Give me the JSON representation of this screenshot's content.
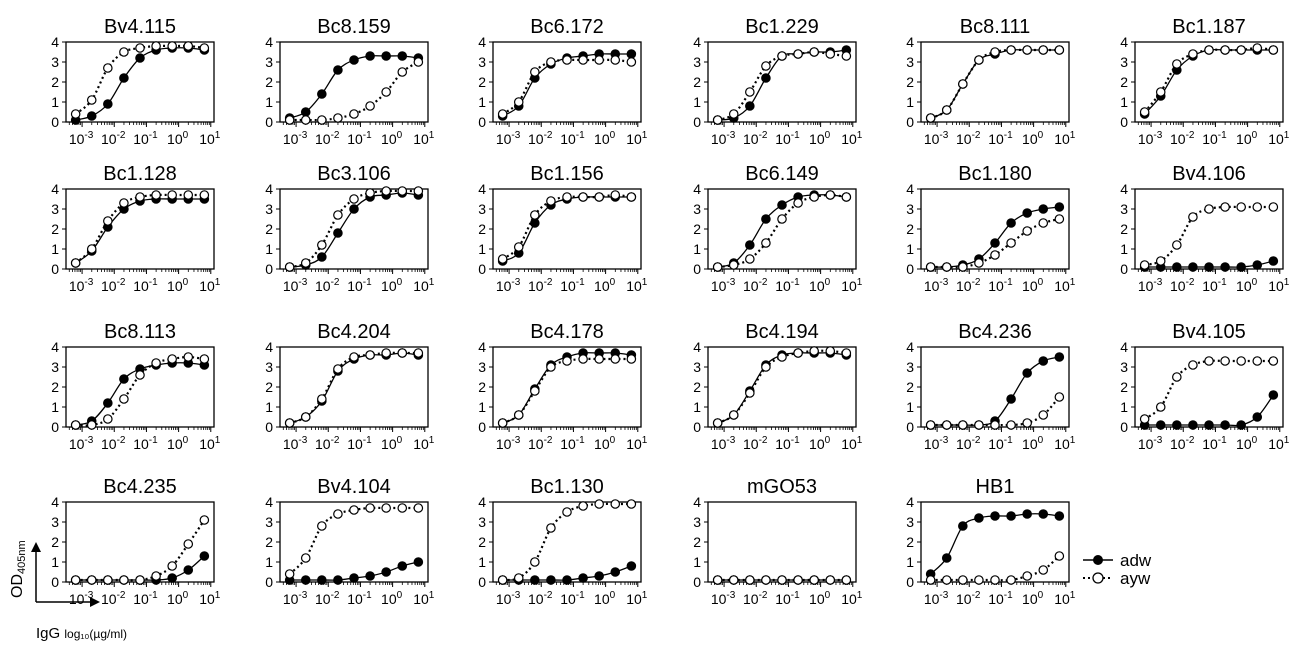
{
  "figure": {
    "yaxis_label_main": "OD",
    "yaxis_label_sub": "405nm",
    "xaxis_label_main": "IgG ",
    "xaxis_label_sub": "log₁₀(µg/ml)"
  },
  "legend": [
    {
      "label": "adw",
      "marker": "filled",
      "line": "solid"
    },
    {
      "label": "ayw",
      "marker": "open",
      "line": "dotted"
    }
  ],
  "tick_labels": {
    "y": [
      "0",
      "1",
      "2",
      "3",
      "4"
    ],
    "x": [
      {
        "base": "10",
        "exp": "-3"
      },
      {
        "base": "10",
        "exp": "-2"
      },
      {
        "base": "10",
        "exp": "-1"
      },
      {
        "base": "10",
        "exp": "0"
      },
      {
        "base": "10",
        "exp": "1"
      }
    ]
  },
  "colors": {
    "ink": "#000000",
    "background": "#ffffff"
  },
  "chart_data": {
    "type": "scatter",
    "x_log10": [
      -3.2,
      -2.7,
      -2.2,
      -1.7,
      -1.2,
      -0.7,
      -0.2,
      0.3,
      0.8
    ],
    "xlim_log10": [
      -3.5,
      1.1
    ],
    "ylim": [
      0,
      4
    ],
    "panels": [
      {
        "title": "Bv4.115",
        "adw": [
          0.1,
          0.3,
          0.9,
          2.2,
          3.2,
          3.6,
          3.7,
          3.7,
          3.6
        ],
        "ayw": [
          0.4,
          1.1,
          2.7,
          3.5,
          3.7,
          3.8,
          3.8,
          3.8,
          3.7
        ]
      },
      {
        "title": "Bc8.159",
        "adw": [
          0.2,
          0.5,
          1.4,
          2.6,
          3.1,
          3.3,
          3.3,
          3.3,
          3.2
        ],
        "ayw": [
          0.1,
          0.1,
          0.1,
          0.2,
          0.4,
          0.8,
          1.5,
          2.5,
          3.0
        ]
      },
      {
        "title": "Bc6.172",
        "adw": [
          0.3,
          0.8,
          2.2,
          2.9,
          3.2,
          3.3,
          3.4,
          3.4,
          3.4
        ],
        "ayw": [
          0.4,
          1.0,
          2.5,
          3.0,
          3.1,
          3.1,
          3.1,
          3.1,
          3.0
        ]
      },
      {
        "title": "Bc1.229",
        "adw": [
          0.1,
          0.2,
          0.8,
          2.2,
          3.3,
          3.4,
          3.5,
          3.5,
          3.6
        ],
        "ayw": [
          0.1,
          0.4,
          1.5,
          2.8,
          3.3,
          3.4,
          3.5,
          3.4,
          3.3
        ]
      },
      {
        "title": "Bc8.111",
        "adw": [
          0.2,
          0.6,
          1.9,
          3.1,
          3.4,
          3.6,
          3.6,
          3.6,
          3.6
        ],
        "ayw": [
          0.2,
          0.6,
          1.9,
          3.1,
          3.5,
          3.6,
          3.6,
          3.6,
          3.6
        ]
      },
      {
        "title": "Bc1.187",
        "adw": [
          0.4,
          1.3,
          2.6,
          3.3,
          3.6,
          3.6,
          3.6,
          3.6,
          3.6
        ],
        "ayw": [
          0.5,
          1.5,
          2.9,
          3.4,
          3.6,
          3.6,
          3.6,
          3.7,
          3.6
        ]
      },
      {
        "title": "Bc1.128",
        "adw": [
          0.3,
          0.9,
          2.1,
          3.0,
          3.4,
          3.5,
          3.5,
          3.5,
          3.5
        ],
        "ayw": [
          0.3,
          1.0,
          2.4,
          3.3,
          3.6,
          3.7,
          3.7,
          3.7,
          3.7
        ]
      },
      {
        "title": "Bc3.106",
        "adw": [
          0.1,
          0.2,
          0.6,
          1.8,
          3.0,
          3.6,
          3.7,
          3.8,
          3.7
        ],
        "ayw": [
          0.1,
          0.3,
          1.2,
          2.7,
          3.5,
          3.8,
          3.9,
          3.9,
          3.9
        ]
      },
      {
        "title": "Bc1.156",
        "adw": [
          0.4,
          0.8,
          2.3,
          3.2,
          3.5,
          3.6,
          3.6,
          3.6,
          3.6
        ],
        "ayw": [
          0.5,
          1.1,
          2.7,
          3.4,
          3.6,
          3.6,
          3.6,
          3.7,
          3.6
        ]
      },
      {
        "title": "Bc6.149",
        "adw": [
          0.1,
          0.3,
          1.2,
          2.5,
          3.2,
          3.6,
          3.7,
          3.7,
          3.6
        ],
        "ayw": [
          0.1,
          0.2,
          0.5,
          1.3,
          2.5,
          3.3,
          3.6,
          3.7,
          3.6
        ]
      },
      {
        "title": "Bc1.180",
        "adw": [
          0.1,
          0.1,
          0.2,
          0.5,
          1.3,
          2.3,
          2.8,
          3.0,
          3.1
        ],
        "ayw": [
          0.1,
          0.1,
          0.1,
          0.3,
          0.7,
          1.3,
          1.9,
          2.3,
          2.5
        ]
      },
      {
        "title": "Bv4.106",
        "adw": [
          0.1,
          0.1,
          0.1,
          0.1,
          0.1,
          0.1,
          0.1,
          0.2,
          0.4
        ],
        "ayw": [
          0.2,
          0.4,
          1.2,
          2.6,
          3.0,
          3.1,
          3.1,
          3.1,
          3.1
        ]
      },
      {
        "title": "Bc8.113",
        "adw": [
          0.1,
          0.3,
          1.2,
          2.4,
          2.9,
          3.1,
          3.2,
          3.2,
          3.1
        ],
        "ayw": [
          0.1,
          0.1,
          0.4,
          1.4,
          2.6,
          3.2,
          3.4,
          3.5,
          3.4
        ]
      },
      {
        "title": "Bc4.204",
        "adw": [
          0.2,
          0.5,
          1.3,
          2.8,
          3.4,
          3.6,
          3.6,
          3.7,
          3.6
        ],
        "ayw": [
          0.2,
          0.5,
          1.4,
          2.9,
          3.5,
          3.6,
          3.7,
          3.7,
          3.7
        ]
      },
      {
        "title": "Bc4.178",
        "adw": [
          0.2,
          0.6,
          1.9,
          3.1,
          3.5,
          3.7,
          3.7,
          3.7,
          3.6
        ],
        "ayw": [
          0.2,
          0.6,
          1.8,
          3.0,
          3.3,
          3.4,
          3.4,
          3.4,
          3.4
        ]
      },
      {
        "title": "Bc4.194",
        "adw": [
          0.2,
          0.6,
          1.8,
          3.1,
          3.6,
          3.7,
          3.7,
          3.7,
          3.6
        ],
        "ayw": [
          0.2,
          0.6,
          1.7,
          3.0,
          3.5,
          3.7,
          3.8,
          3.8,
          3.7
        ]
      },
      {
        "title": "Bc4.236",
        "adw": [
          0.1,
          0.1,
          0.1,
          0.1,
          0.3,
          1.4,
          2.7,
          3.3,
          3.5
        ],
        "ayw": [
          0.1,
          0.1,
          0.1,
          0.1,
          0.1,
          0.1,
          0.2,
          0.6,
          1.5
        ]
      },
      {
        "title": "Bv4.105",
        "adw": [
          0.1,
          0.1,
          0.1,
          0.1,
          0.1,
          0.1,
          0.1,
          0.5,
          1.6
        ],
        "ayw": [
          0.4,
          1.0,
          2.5,
          3.1,
          3.3,
          3.3,
          3.3,
          3.3,
          3.3
        ]
      },
      {
        "title": "Bc4.235",
        "adw": [
          0.1,
          0.1,
          0.1,
          0.1,
          0.1,
          0.1,
          0.2,
          0.6,
          1.3
        ],
        "ayw": [
          0.1,
          0.1,
          0.1,
          0.1,
          0.1,
          0.3,
          0.8,
          1.9,
          3.1
        ]
      },
      {
        "title": "Bv4.104",
        "adw": [
          0.1,
          0.1,
          0.1,
          0.1,
          0.2,
          0.3,
          0.5,
          0.8,
          1.0
        ],
        "ayw": [
          0.4,
          1.2,
          2.8,
          3.4,
          3.6,
          3.7,
          3.7,
          3.7,
          3.7
        ]
      },
      {
        "title": "Bc1.130",
        "adw": [
          0.1,
          0.1,
          0.1,
          0.1,
          0.1,
          0.2,
          0.3,
          0.5,
          0.8
        ],
        "ayw": [
          0.1,
          0.2,
          1.0,
          2.7,
          3.5,
          3.8,
          3.9,
          3.9,
          3.9
        ]
      },
      {
        "title": "mGO53",
        "adw": [
          0.1,
          0.1,
          0.1,
          0.1,
          0.1,
          0.1,
          0.1,
          0.1,
          0.1
        ],
        "ayw": [
          0.1,
          0.1,
          0.1,
          0.1,
          0.1,
          0.1,
          0.1,
          0.1,
          0.1
        ]
      },
      {
        "title": "HB1",
        "adw": [
          0.4,
          1.2,
          2.8,
          3.2,
          3.3,
          3.3,
          3.4,
          3.4,
          3.3
        ],
        "ayw": [
          0.1,
          0.1,
          0.1,
          0.1,
          0.1,
          0.1,
          0.3,
          0.6,
          1.3
        ]
      }
    ]
  }
}
